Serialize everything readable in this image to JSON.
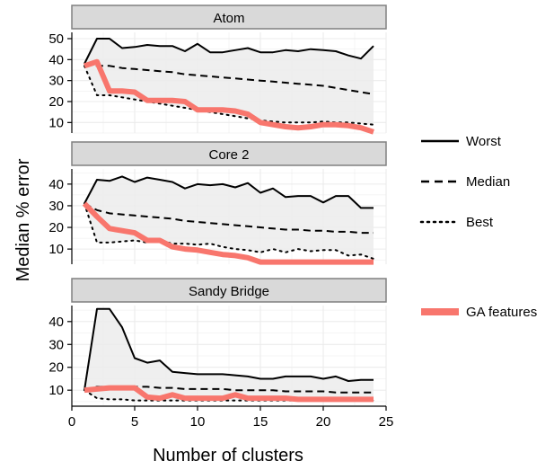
{
  "chart_data": {
    "type": "line",
    "xlabel": "Number of clusters",
    "ylabel": "Median % error",
    "xlim": [
      0,
      25
    ],
    "x_ticks": [
      0,
      5,
      10,
      15,
      20,
      25
    ],
    "grid": true,
    "legend_position": "right",
    "legend": [
      {
        "key": "worst",
        "label": "Worst"
      },
      {
        "key": "median",
        "label": "Median"
      },
      {
        "key": "best",
        "label": "Best"
      },
      {
        "key": "ga",
        "label": "GA features"
      }
    ],
    "colors": {
      "ga": "#f8766d",
      "panel_bg": "#ffffff",
      "grid": "#ebebeb",
      "shade": "#ececec",
      "strip_bg": "#d9d9d9",
      "strip_border": "#808080",
      "line": "#000000"
    },
    "x": [
      1,
      2,
      3,
      4,
      5,
      6,
      7,
      8,
      9,
      10,
      11,
      12,
      13,
      14,
      15,
      16,
      17,
      18,
      19,
      20,
      21,
      22,
      23,
      24
    ],
    "panels": [
      {
        "title": "Atom",
        "ylim": [
          5,
          53
        ],
        "y_ticks": [
          10,
          20,
          30,
          40,
          50
        ],
        "series": {
          "worst": [
            38,
            50,
            50,
            45.5,
            46,
            47,
            46.5,
            46.5,
            44,
            47.5,
            43.5,
            43.5,
            44.5,
            45.5,
            43.5,
            43.5,
            44.5,
            44,
            45,
            44.5,
            44,
            42,
            40.5,
            46.5
          ],
          "median": [
            38,
            37,
            37,
            36,
            35.5,
            35,
            34.5,
            34,
            33,
            32.5,
            32,
            31.5,
            31,
            30.5,
            30,
            29.5,
            29,
            28.5,
            28,
            27.5,
            26.5,
            25.5,
            24.5,
            23.5
          ],
          "best": [
            37,
            23,
            23,
            22,
            21,
            20,
            19,
            18,
            17,
            16,
            15,
            14,
            13,
            12,
            11,
            10.5,
            10,
            10,
            10,
            10.5,
            10,
            10,
            9.5,
            9
          ],
          "ga": [
            37,
            39,
            25,
            25,
            24.5,
            20.5,
            20.5,
            20.5,
            20,
            16,
            16,
            16,
            15.5,
            14,
            10,
            9,
            8,
            7.5,
            8,
            9,
            9,
            8.5,
            7.5,
            5.5
          ]
        }
      },
      {
        "title": "Core 2",
        "ylim": [
          3,
          47
        ],
        "y_ticks": [
          10,
          20,
          30,
          40
        ],
        "series": {
          "worst": [
            31,
            42,
            41.5,
            43.5,
            41,
            43,
            42,
            41,
            38,
            40,
            39.5,
            40,
            38.5,
            40.5,
            36,
            38,
            34,
            34.5,
            34.5,
            31.5,
            34.5,
            34.5,
            29,
            29
          ],
          "median": [
            31,
            28,
            26.5,
            26,
            25.5,
            25,
            24.5,
            24,
            23,
            22.5,
            22,
            21.5,
            21,
            20.5,
            20,
            19.5,
            19,
            19,
            18.5,
            18.5,
            18,
            18,
            17.5,
            17.5
          ],
          "best": [
            31,
            13,
            13,
            13.5,
            14,
            13,
            14,
            12.5,
            12.5,
            12,
            12.5,
            11,
            10,
            9.5,
            8.5,
            10,
            8.5,
            10,
            9,
            9.5,
            9.5,
            7,
            7.5,
            5.5
          ],
          "ga": [
            31,
            25,
            19.5,
            18.5,
            17.5,
            14,
            14,
            11,
            10,
            9.5,
            8.5,
            7.5,
            7,
            6,
            4,
            4,
            4,
            4,
            4,
            4,
            4,
            4,
            4,
            4
          ]
        }
      },
      {
        "title": "Sandy Bridge",
        "ylim": [
          3,
          47
        ],
        "y_ticks": [
          10,
          20,
          30,
          40
        ],
        "series": {
          "worst": [
            10,
            45.5,
            45.5,
            37.5,
            24,
            22,
            23,
            18,
            17.5,
            17,
            17,
            17,
            16.5,
            16,
            15,
            15,
            16,
            16,
            16,
            15,
            16,
            14,
            14.5,
            14.5
          ],
          "median": [
            10,
            11.5,
            11.5,
            11.5,
            11.5,
            11.5,
            11,
            11,
            10.5,
            10.5,
            10.5,
            10.5,
            10,
            10,
            10,
            10,
            9.5,
            9.5,
            9.5,
            9.5,
            9,
            9,
            9,
            9
          ],
          "best": [
            10,
            6.5,
            6,
            6,
            5.5,
            5.5,
            5.5,
            5.5,
            5.5,
            5.5,
            5.5,
            5.5,
            5.5,
            5.5,
            5.5,
            5.5,
            5.5,
            5.5,
            5.5,
            5.5,
            5.5,
            5.5,
            5.5,
            5.5
          ],
          "ga": [
            10,
            10.5,
            11,
            11,
            11,
            7,
            6.5,
            8,
            6.5,
            6.5,
            6.5,
            6.5,
            8,
            6.5,
            6.5,
            6.5,
            6.5,
            6,
            6,
            6,
            6,
            6,
            6,
            6
          ]
        }
      }
    ]
  }
}
